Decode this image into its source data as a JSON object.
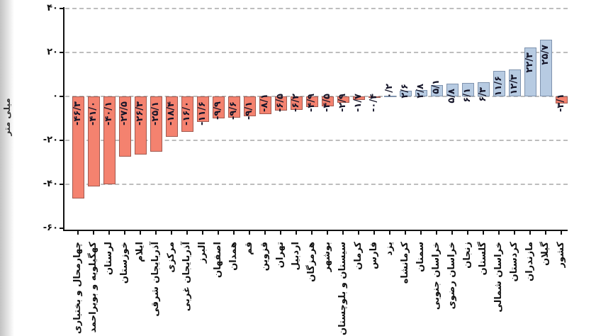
{
  "chart_data": {
    "type": "bar",
    "title": "",
    "ylabel": "میلی متر",
    "xlabel": "",
    "ylim": [
      -60,
      40
    ],
    "grid": "dashed-horizontal",
    "legend_position": "none",
    "yticks": [
      {
        "value": 40,
        "label": "۴۰"
      },
      {
        "value": 20,
        "label": "۲۰"
      },
      {
        "value": 0,
        "label": "۰"
      },
      {
        "value": -20,
        "label": "-۲۰"
      },
      {
        "value": -40,
        "label": "-۴۰"
      },
      {
        "value": -60,
        "label": "-۶۰"
      }
    ],
    "bars": [
      {
        "label": "چهارمحال و بختیاری",
        "value": -46.3,
        "display": "-۴۶/۳"
      },
      {
        "label": "کهگیلویه و بویراحمد",
        "value": -41.0,
        "display": "-۴۱/۰"
      },
      {
        "label": "لرستان",
        "value": -40.1,
        "display": "-۴۰/۱"
      },
      {
        "label": "خوزستان",
        "value": -27.5,
        "display": "-۲۷/۵"
      },
      {
        "label": "ایلام",
        "value": -26.3,
        "display": "-۲۶/۳"
      },
      {
        "label": "آذربایجان شرقی",
        "value": -25.1,
        "display": "-۲۵/۱"
      },
      {
        "label": "مرکزی",
        "value": -18.4,
        "display": "-۱۸/۴"
      },
      {
        "label": "آذربایجان غربی",
        "value": -16.0,
        "display": "-۱۶/۰"
      },
      {
        "label": "البرز",
        "value": -11.6,
        "display": "-۱۱/۶"
      },
      {
        "label": "اصفهان",
        "value": -9.9,
        "display": "-۹/۹"
      },
      {
        "label": "همدان",
        "value": -9.6,
        "display": "-۹/۶"
      },
      {
        "label": "قم",
        "value": -9.1,
        "display": "-۹/۱"
      },
      {
        "label": "قزوین",
        "value": -8.1,
        "display": "-۸/۱"
      },
      {
        "label": "تهران",
        "value": -6.5,
        "display": "-۶/۵"
      },
      {
        "label": "اردبیل",
        "value": -6.2,
        "display": "-۶/۲"
      },
      {
        "label": "هرمزگان",
        "value": -4.9,
        "display": "-۴/۹"
      },
      {
        "label": "بوشهر",
        "value": -4.5,
        "display": "-۴/۵"
      },
      {
        "label": "سیستان و بلوچستان",
        "value": -2.9,
        "display": "-۲/۹"
      },
      {
        "label": "کرمان",
        "value": -1.7,
        "display": "-۱/۷"
      },
      {
        "label": "فارس",
        "value": -0.4,
        "display": "-۰/۴"
      },
      {
        "label": "یزد",
        "value": 0.2,
        "display": "۰/۲"
      },
      {
        "label": "کرمانشاه",
        "value": 2.6,
        "display": "۲/۶"
      },
      {
        "label": "سمنان",
        "value": 2.8,
        "display": "۲/۸"
      },
      {
        "label": "خراسان جنوبی",
        "value": 5.1,
        "display": "۵/۱"
      },
      {
        "label": "خراسان رضوی",
        "value": 5.8,
        "display": "۵/۸"
      },
      {
        "label": "زنجان",
        "value": 6.1,
        "display": "۶/۱"
      },
      {
        "label": "گلستان",
        "value": 6.3,
        "display": "۶/۳"
      },
      {
        "label": "خراسان شمالی",
        "value": 11.6,
        "display": "۱۱/۶"
      },
      {
        "label": "کردستان",
        "value": 12.3,
        "display": "۱۲/۳"
      },
      {
        "label": "مازندران",
        "value": 22.3,
        "display": "۲۲/۳"
      },
      {
        "label": "گیلان",
        "value": 25.7,
        "display": "۲۵/۷"
      },
      {
        "label": "کشور",
        "value": -3.1,
        "display": "-۳/۱"
      }
    ],
    "colors": {
      "negative_fill": "#F4826F",
      "positive_fill": "#B7CBE2",
      "grid": "#BDBDBD",
      "axis": "#111111",
      "value_text": "#141428",
      "label_text": "#111111"
    }
  }
}
